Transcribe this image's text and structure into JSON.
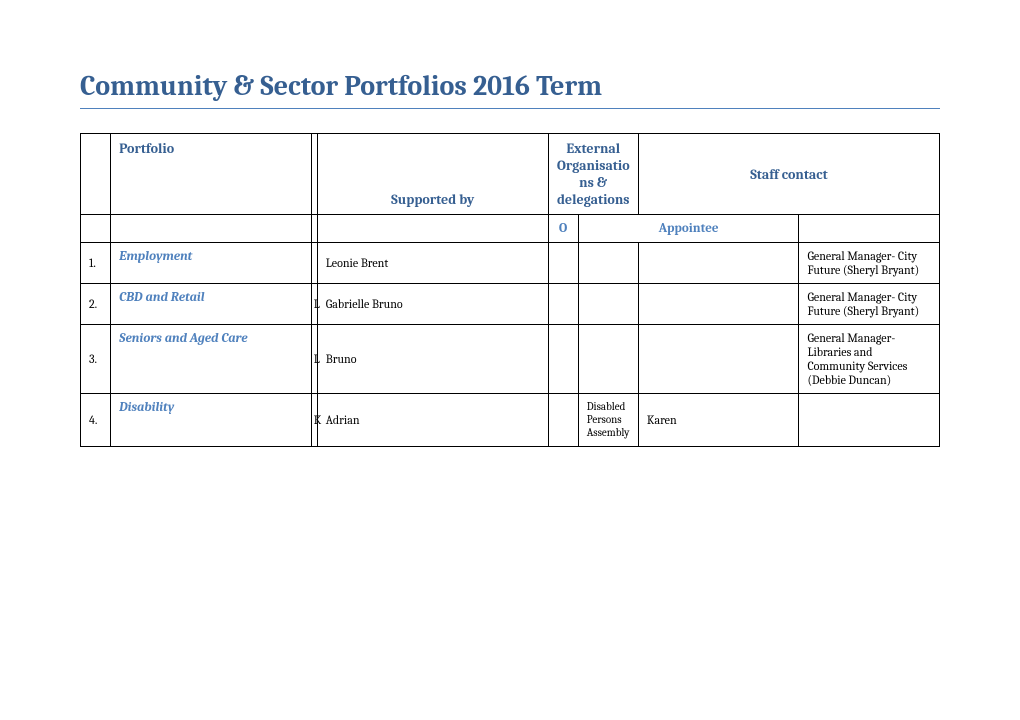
{
  "title": "Community & Sector Portfolios 2016 Term",
  "headers": {
    "portfolio": "Portfolio",
    "supported_by": "Supported by",
    "external_orgs": "External Organisations & delegations",
    "staff_contact": "Staff contact",
    "o": "O",
    "appointee": "Appointee"
  },
  "rows": [
    {
      "num": "1.",
      "portfolio": "Employment",
      "col2_prefix": "",
      "supported_by": "Leonie Brent",
      "o": "",
      "org": "",
      "appointee": "",
      "staff": "General Manager- City Future (Sheryl Bryant)"
    },
    {
      "num": "2.",
      "portfolio": "CBD and Retail",
      "col2_prefix": "L",
      "supported_by": "Gabrielle Bruno",
      "o": "",
      "org": "",
      "appointee": "",
      "staff": "General Manager- City Future (Sheryl Bryant)"
    },
    {
      "num": "3.",
      "portfolio": "Seniors and Aged Care",
      "col2_prefix": "L",
      "supported_by": "Bruno",
      "o": "",
      "org": "",
      "appointee": "",
      "staff": "General Manager- Libraries and Community Services (Debbie Duncan)"
    },
    {
      "num": "4.",
      "portfolio": "Disability",
      "col2_prefix": "K",
      "supported_by": "Adrian",
      "o": "",
      "org": "Disabled Persons Assembly",
      "appointee": "Karen",
      "staff": ""
    }
  ],
  "colors": {
    "heading": "#365f91",
    "accent": "#4f81bd",
    "border": "#000000",
    "background": "#ffffff"
  }
}
